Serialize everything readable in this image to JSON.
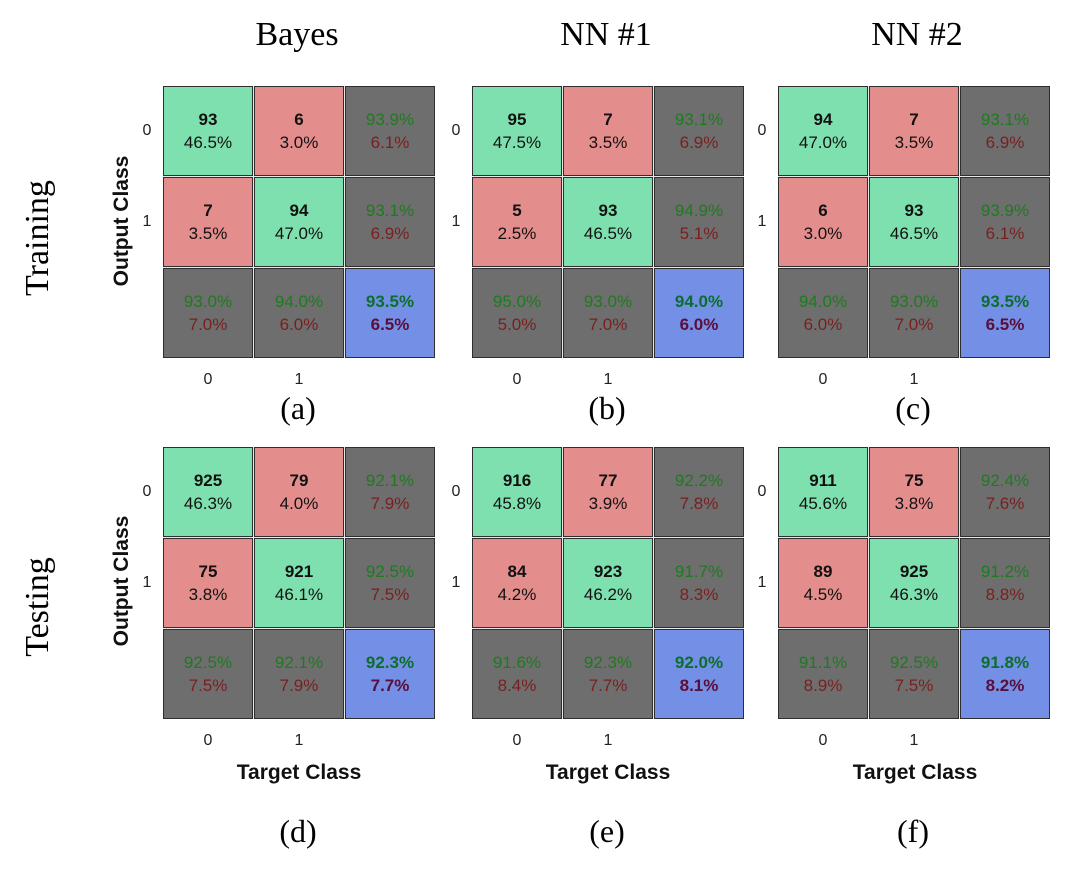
{
  "columns": [
    "Bayes",
    "NN #1",
    "NN #2"
  ],
  "rows": [
    "Training",
    "Testing"
  ],
  "ylabel": "Output Class",
  "xlabel": "Target Class",
  "ticks": [
    "0",
    "1"
  ],
  "colors": {
    "correct": "#7ee0ae",
    "incorrect": "#e38e8c",
    "summary": "#6e6e6e",
    "total": "#7490e6"
  },
  "chart_data": [
    {
      "type": "heatmap",
      "label": "(a)",
      "row": "Training",
      "column": "Bayes",
      "matrix": [
        [
          "93",
          "6"
        ],
        [
          "7",
          "94"
        ]
      ],
      "matrix_pct": [
        [
          "46.5%",
          "3.0%"
        ],
        [
          "3.5%",
          "47.0%"
        ]
      ],
      "row_summary": [
        [
          "93.9%",
          "6.1%"
        ],
        [
          "93.1%",
          "6.9%"
        ]
      ],
      "col_summary": [
        [
          "93.0%",
          "7.0%"
        ],
        [
          "94.0%",
          "6.0%"
        ]
      ],
      "overall": [
        "93.5%",
        "6.5%"
      ]
    },
    {
      "type": "heatmap",
      "label": "(b)",
      "row": "Training",
      "column": "NN #1",
      "matrix": [
        [
          "95",
          "7"
        ],
        [
          "5",
          "93"
        ]
      ],
      "matrix_pct": [
        [
          "47.5%",
          "3.5%"
        ],
        [
          "2.5%",
          "46.5%"
        ]
      ],
      "row_summary": [
        [
          "93.1%",
          "6.9%"
        ],
        [
          "94.9%",
          "5.1%"
        ]
      ],
      "col_summary": [
        [
          "95.0%",
          "5.0%"
        ],
        [
          "93.0%",
          "7.0%"
        ]
      ],
      "overall": [
        "94.0%",
        "6.0%"
      ]
    },
    {
      "type": "heatmap",
      "label": "(c)",
      "row": "Training",
      "column": "NN #2",
      "matrix": [
        [
          "94",
          "7"
        ],
        [
          "6",
          "93"
        ]
      ],
      "matrix_pct": [
        [
          "47.0%",
          "3.5%"
        ],
        [
          "3.0%",
          "46.5%"
        ]
      ],
      "row_summary": [
        [
          "93.1%",
          "6.9%"
        ],
        [
          "93.9%",
          "6.1%"
        ]
      ],
      "col_summary": [
        [
          "94.0%",
          "6.0%"
        ],
        [
          "93.0%",
          "7.0%"
        ]
      ],
      "overall": [
        "93.5%",
        "6.5%"
      ]
    },
    {
      "type": "heatmap",
      "label": "(d)",
      "row": "Testing",
      "column": "Bayes",
      "matrix": [
        [
          "925",
          "79"
        ],
        [
          "75",
          "921"
        ]
      ],
      "matrix_pct": [
        [
          "46.3%",
          "4.0%"
        ],
        [
          "3.8%",
          "46.1%"
        ]
      ],
      "row_summary": [
        [
          "92.1%",
          "7.9%"
        ],
        [
          "92.5%",
          "7.5%"
        ]
      ],
      "col_summary": [
        [
          "92.5%",
          "7.5%"
        ],
        [
          "92.1%",
          "7.9%"
        ]
      ],
      "overall": [
        "92.3%",
        "7.7%"
      ]
    },
    {
      "type": "heatmap",
      "label": "(e)",
      "row": "Testing",
      "column": "NN #1",
      "matrix": [
        [
          "916",
          "77"
        ],
        [
          "84",
          "923"
        ]
      ],
      "matrix_pct": [
        [
          "45.8%",
          "3.9%"
        ],
        [
          "4.2%",
          "46.2%"
        ]
      ],
      "row_summary": [
        [
          "92.2%",
          "7.8%"
        ],
        [
          "91.7%",
          "8.3%"
        ]
      ],
      "col_summary": [
        [
          "91.6%",
          "8.4%"
        ],
        [
          "92.3%",
          "7.7%"
        ]
      ],
      "overall": [
        "92.0%",
        "8.1%"
      ]
    },
    {
      "type": "heatmap",
      "label": "(f)",
      "row": "Testing",
      "column": "NN #2",
      "matrix": [
        [
          "911",
          "75"
        ],
        [
          "89",
          "925"
        ]
      ],
      "matrix_pct": [
        [
          "45.6%",
          "3.8%"
        ],
        [
          "4.5%",
          "46.3%"
        ]
      ],
      "row_summary": [
        [
          "92.4%",
          "7.6%"
        ],
        [
          "91.2%",
          "8.8%"
        ]
      ],
      "col_summary": [
        [
          "91.1%",
          "8.9%"
        ],
        [
          "92.5%",
          "7.5%"
        ]
      ],
      "overall": [
        "91.8%",
        "8.2%"
      ]
    }
  ]
}
